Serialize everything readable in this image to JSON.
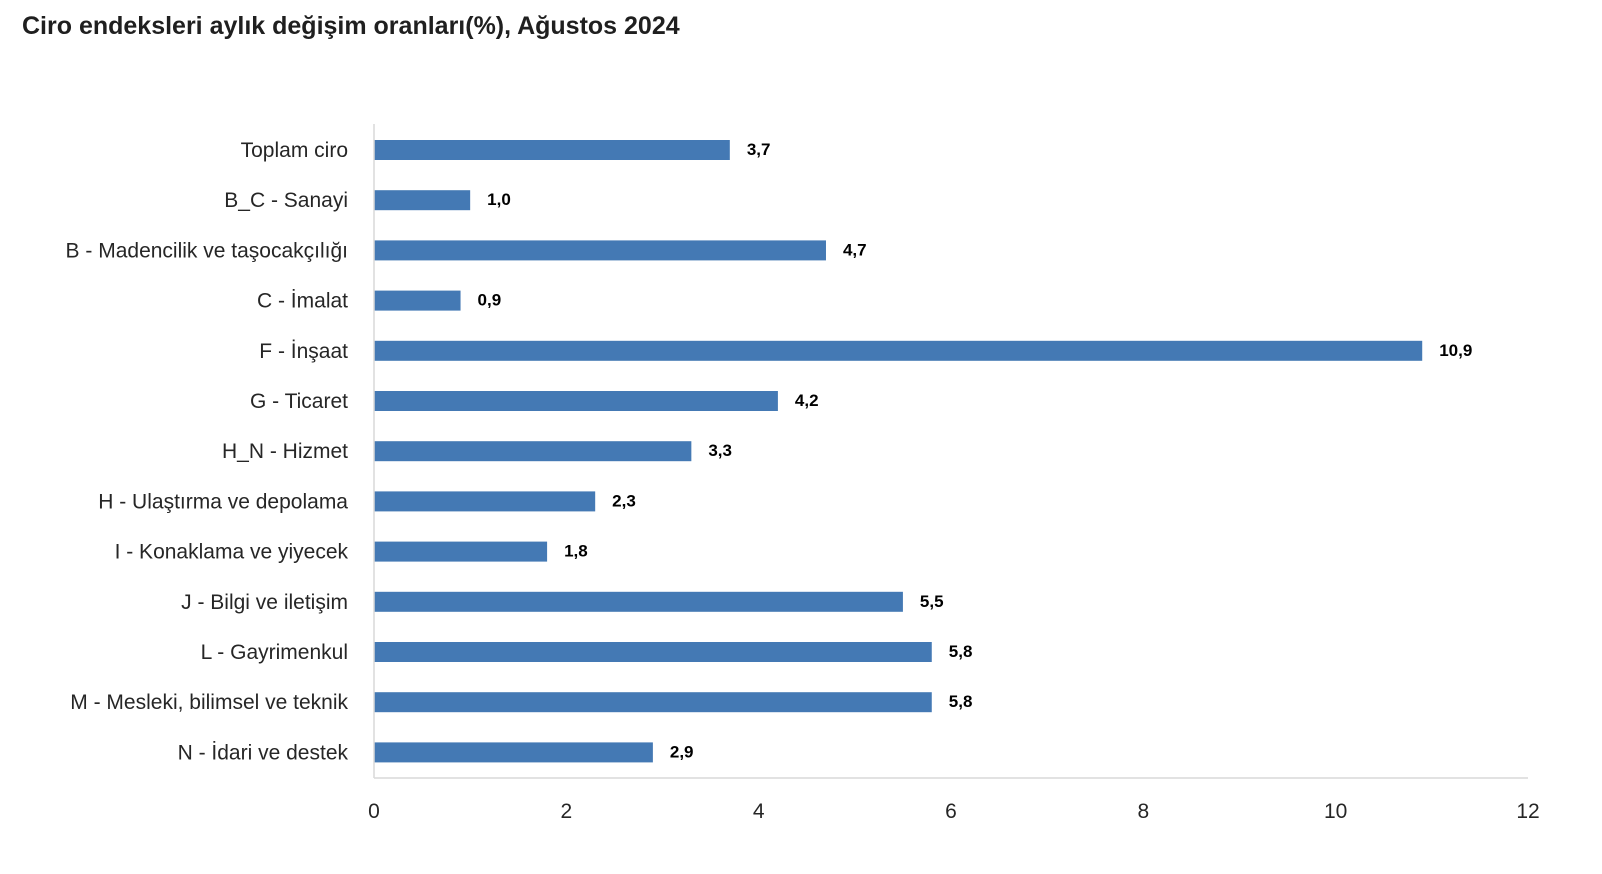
{
  "chart_data": {
    "type": "bar",
    "orientation": "horizontal",
    "title": "Ciro endeksleri aylık değişim oranları(%), Ağustos 2024",
    "xlabel": "",
    "ylabel": "",
    "categories": [
      "Toplam ciro",
      "B_C - Sanayi",
      "B - Madencilik ve taşocakçılığı",
      "C - İmalat",
      "F - İnşaat",
      "G - Ticaret",
      "H_N - Hizmet",
      "H - Ulaştırma ve depolama",
      "I - Konaklama ve yiyecek",
      "J - Bilgi ve iletişim",
      "L - Gayrimenkul",
      "M - Mesleki, bilimsel ve teknik",
      "N - İdari ve destek"
    ],
    "values": [
      3.7,
      1.0,
      4.7,
      0.9,
      10.9,
      4.2,
      3.3,
      2.3,
      1.8,
      5.5,
      5.8,
      5.8,
      2.9
    ],
    "data_labels": [
      "3,7",
      "1,0",
      "4,7",
      "0,9",
      "10,9",
      "4,2",
      "3,3",
      "2,3",
      "1,8",
      "5,5",
      "5,8",
      "5,8",
      "2,9"
    ],
    "xlim": [
      0,
      12
    ],
    "x_ticks": [
      0,
      2,
      4,
      6,
      8,
      10,
      12
    ],
    "x_tick_labels": [
      "0",
      "2",
      "4",
      "6",
      "8",
      "10",
      "12"
    ],
    "bar_color": "#4479b4",
    "axis_color": "#d9d9d9",
    "grid": false,
    "legend": "none"
  }
}
